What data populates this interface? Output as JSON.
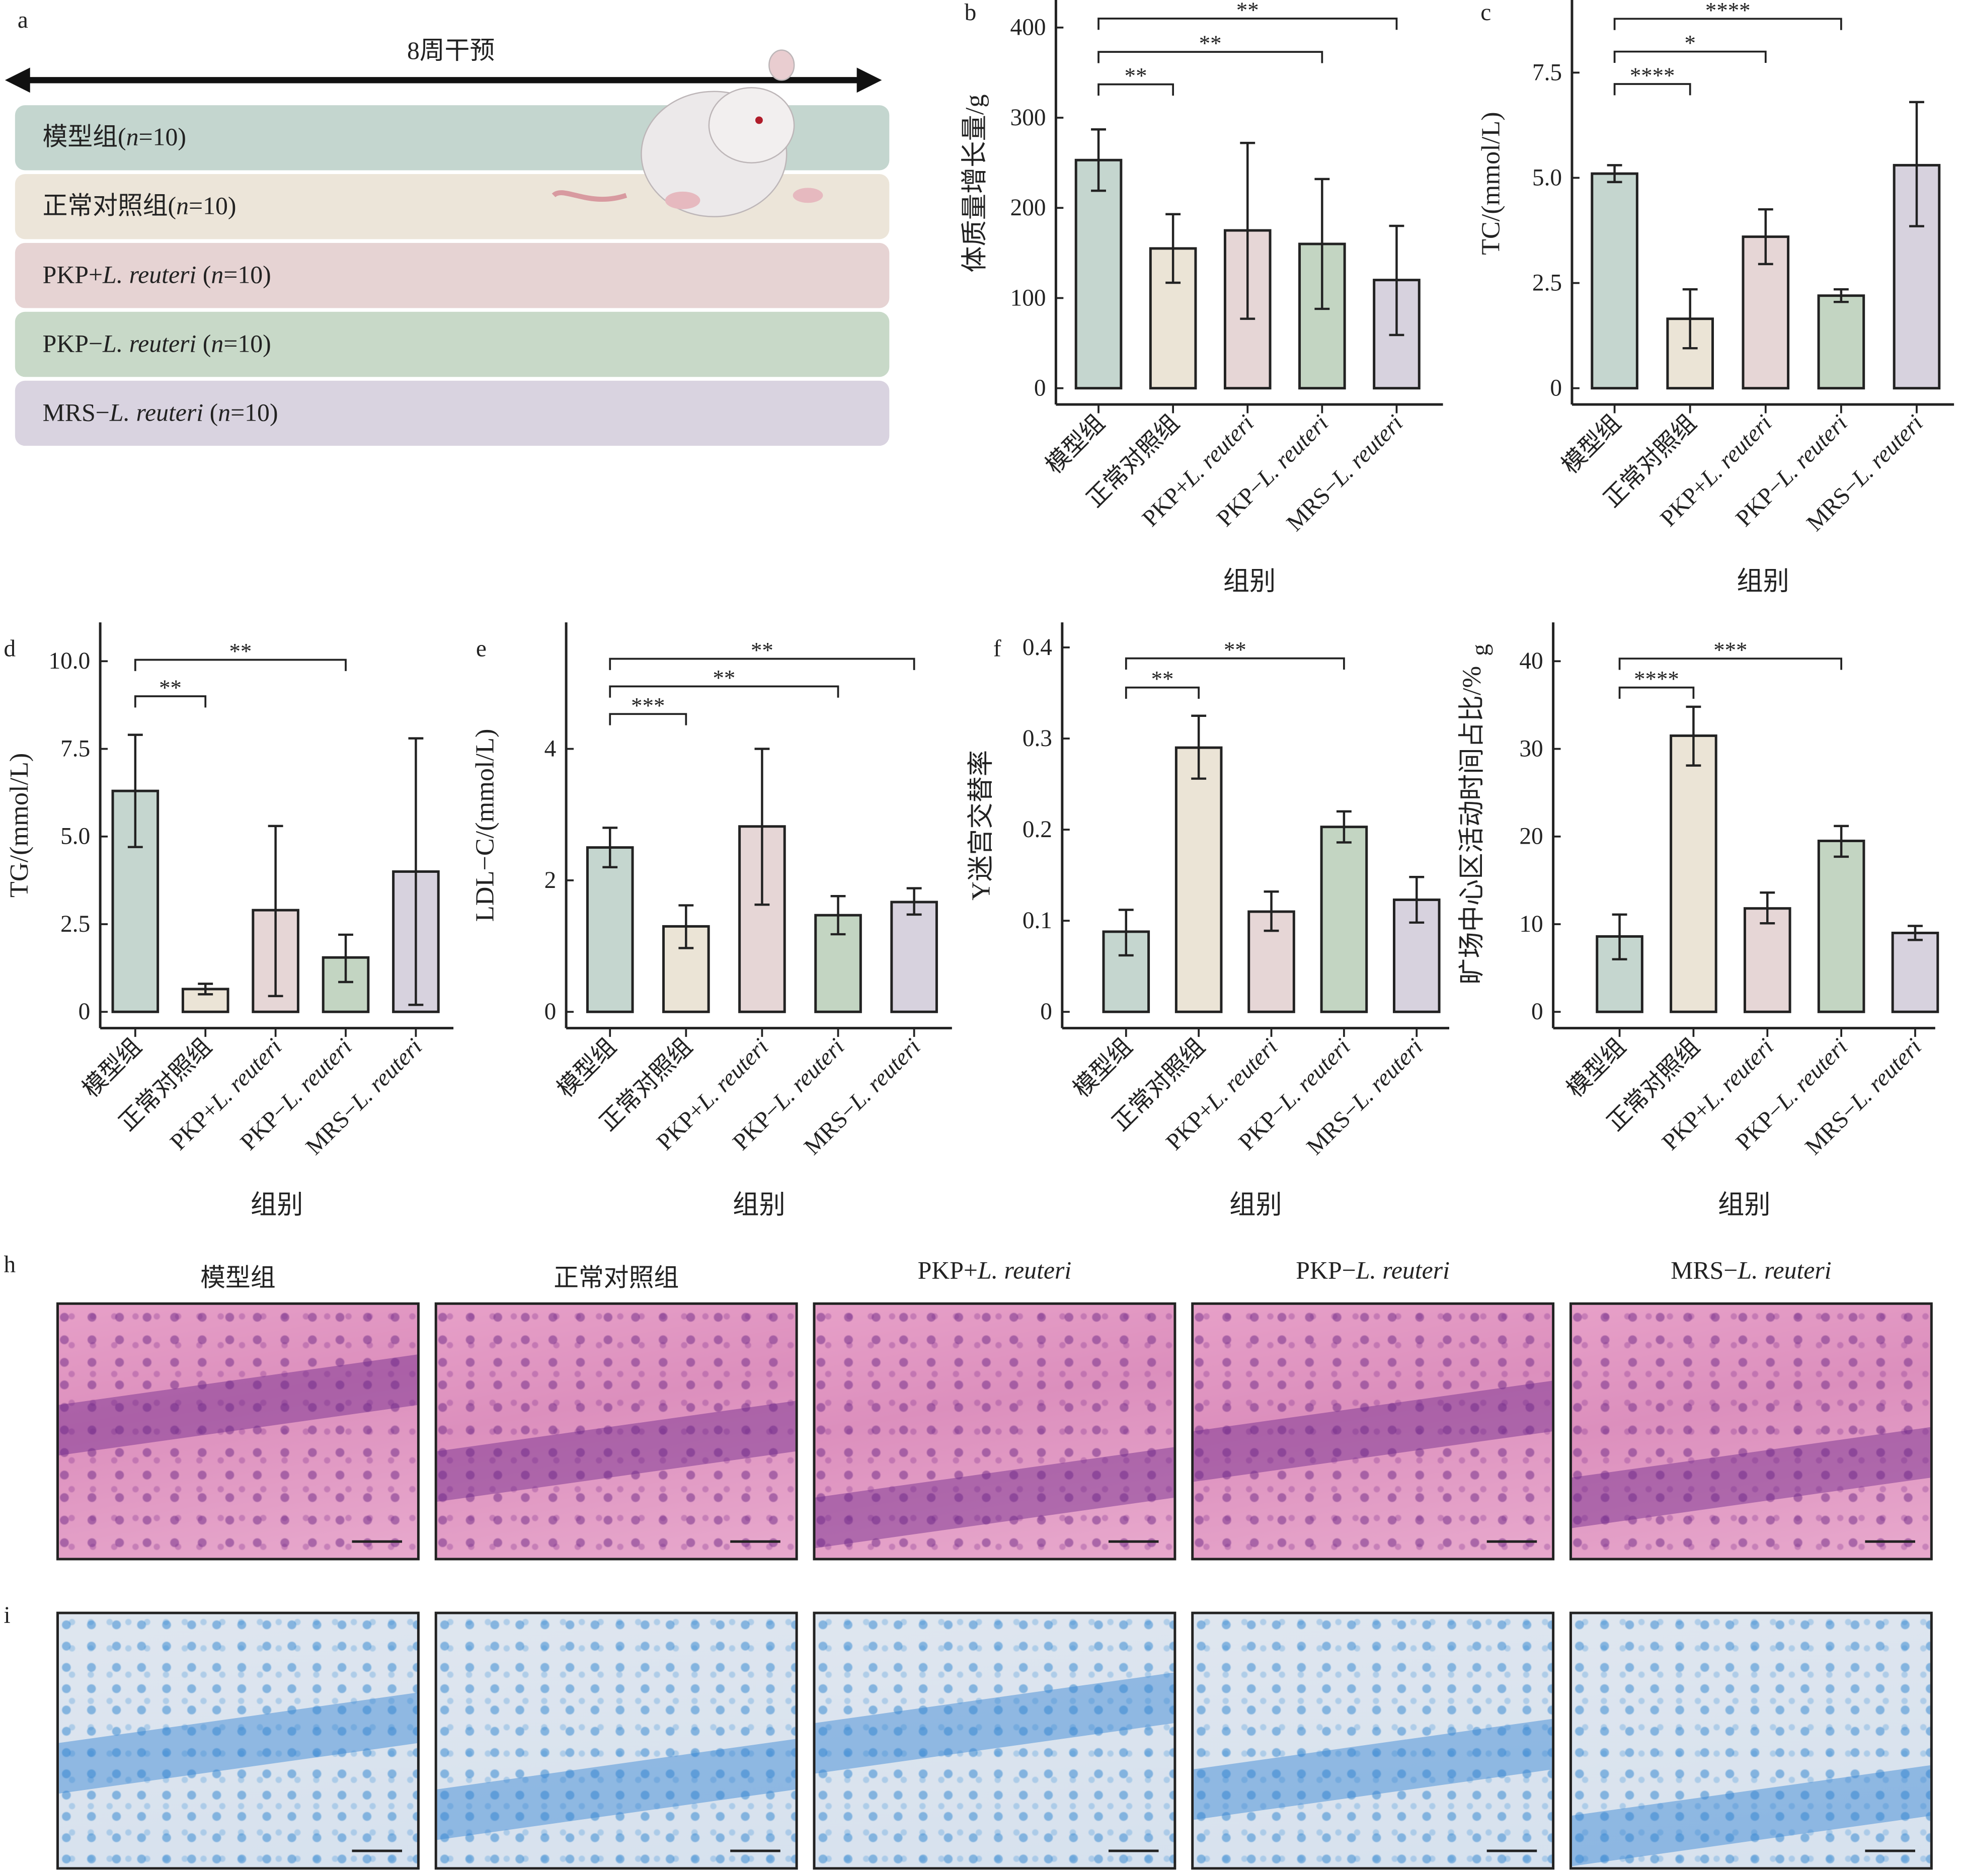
{
  "panel_letters": {
    "a": "a",
    "b": "b",
    "c": "c",
    "d": "d",
    "e": "e",
    "f": "f",
    "g": "g",
    "h": "h",
    "i": "i"
  },
  "design": {
    "duration_label": "8周干预",
    "rows": [
      {
        "segments": [
          {
            "t": "模型组(",
            "i": false
          },
          {
            "t": "n",
            "i": true
          },
          {
            "t": "=10)",
            "i": false
          }
        ],
        "color": "#c4d6cf"
      },
      {
        "segments": [
          {
            "t": "正常对照组(",
            "i": false
          },
          {
            "t": "n",
            "i": true
          },
          {
            "t": "=10)",
            "i": false
          }
        ],
        "color": "#ece5d9"
      },
      {
        "segments": [
          {
            "t": "PKP+",
            "i": false
          },
          {
            "t": "L. reuteri",
            "i": true
          },
          {
            "t": " (",
            "i": false
          },
          {
            "t": "n",
            "i": true
          },
          {
            "t": "=10)",
            "i": false
          }
        ],
        "color": "#e6d3d3"
      },
      {
        "segments": [
          {
            "t": "PKP−",
            "i": false
          },
          {
            "t": "L. reuteri",
            "i": true
          },
          {
            "t": " (",
            "i": false
          },
          {
            "t": "n",
            "i": true
          },
          {
            "t": "=10)",
            "i": false
          }
        ],
        "color": "#c8d9c8"
      },
      {
        "segments": [
          {
            "t": "MRS−",
            "i": false
          },
          {
            "t": "L. reuteri",
            "i": true
          },
          {
            "t": " (",
            "i": false
          },
          {
            "t": "n",
            "i": true
          },
          {
            "t": "=10)",
            "i": false
          }
        ],
        "color": "#d9d3e0"
      }
    ]
  },
  "groups": [
    {
      "pre": "模型组",
      "it": ""
    },
    {
      "pre": "正常对照组",
      "it": ""
    },
    {
      "pre": "PKP+",
      "it": "L. reuteri"
    },
    {
      "pre": "PKP−",
      "it": "L. reuteri"
    },
    {
      "pre": "MRS−",
      "it": "L. reuteri"
    }
  ],
  "bar_colors": [
    "#c5d6cf",
    "#ebe4d6",
    "#e6d6d6",
    "#c3d5c2",
    "#d7d2de"
  ],
  "chart_data": [
    {
      "id": "b",
      "type": "bar",
      "xlabel": "组别",
      "ylabel": "体质量增长量/g",
      "yticks": [
        "0",
        "100",
        "200",
        "300",
        "400"
      ],
      "ytick_values": [
        0,
        100,
        200,
        300,
        400
      ],
      "values": [
        253,
        155,
        175,
        160,
        120
      ],
      "err_low": [
        219,
        117,
        77,
        88,
        59
      ],
      "err_high": [
        287,
        193,
        272,
        232,
        180
      ],
      "significance": [
        {
          "from": 1,
          "to": 2,
          "label": "**",
          "y": 337
        },
        {
          "from": 1,
          "to": 4,
          "label": "**",
          "y": 373
        },
        {
          "from": 1,
          "to": 5,
          "label": "**",
          "y": 410
        }
      ]
    },
    {
      "id": "c",
      "type": "bar",
      "xlabel": "组别",
      "ylabel": "TC/(mmol/L)",
      "yticks": [
        "0",
        "2.5",
        "5.0",
        "7.5"
      ],
      "ytick_values": [
        0,
        2.5,
        5,
        7.5
      ],
      "values": [
        5.1,
        1.65,
        3.6,
        2.2,
        5.3
      ],
      "err_low": [
        4.9,
        0.95,
        2.95,
        2.05,
        3.85
      ],
      "err_high": [
        5.3,
        2.35,
        4.25,
        2.35,
        6.8
      ],
      "significance": [
        {
          "from": 1,
          "to": 2,
          "label": "****",
          "y": 7.23
        },
        {
          "from": 1,
          "to": 3,
          "label": "*",
          "y": 8.0
        },
        {
          "from": 1,
          "to": 4,
          "label": "****",
          "y": 8.78
        }
      ]
    },
    {
      "id": "d",
      "type": "bar",
      "xlabel": "组别",
      "ylabel": "TG/(mmol/L)",
      "yticks": [
        "0",
        "2.5",
        "5.0",
        "7.5",
        "10.0"
      ],
      "ytick_values": [
        0,
        2.5,
        5,
        7.5,
        10
      ],
      "values": [
        6.3,
        0.65,
        2.9,
        1.55,
        4.0
      ],
      "err_low": [
        4.7,
        0.5,
        0.45,
        0.85,
        0.2
      ],
      "err_high": [
        7.9,
        0.8,
        5.3,
        2.2,
        7.8
      ],
      "significance": [
        {
          "from": 1,
          "to": 2,
          "label": "**",
          "y": 9.0
        },
        {
          "from": 1,
          "to": 4,
          "label": "**",
          "y": 10.04
        }
      ]
    },
    {
      "id": "e",
      "type": "bar",
      "xlabel": "组别",
      "ylabel": "LDL−C/(mmol/L)",
      "yticks": [
        "0",
        "2",
        "4"
      ],
      "ytick_values": [
        0,
        2,
        4
      ],
      "values": [
        2.5,
        1.3,
        2.82,
        1.47,
        1.67
      ],
      "err_low": [
        2.2,
        0.97,
        1.63,
        1.18,
        1.48
      ],
      "err_high": [
        2.8,
        1.62,
        4.0,
        1.76,
        1.88
      ],
      "significance": [
        {
          "from": 1,
          "to": 2,
          "label": "***",
          "y": 4.53
        },
        {
          "from": 1,
          "to": 4,
          "label": "**",
          "y": 4.95
        },
        {
          "from": 1,
          "to": 5,
          "label": "**",
          "y": 5.37
        }
      ]
    },
    {
      "id": "f",
      "type": "bar",
      "xlabel": "组别",
      "ylabel": "Y迷宫交替率",
      "yticks": [
        "0",
        "0.1",
        "0.2",
        "0.3",
        "0.4"
      ],
      "ytick_values": [
        0,
        0.1,
        0.2,
        0.3,
        0.4
      ],
      "values": [
        0.088,
        0.29,
        0.11,
        0.203,
        0.123
      ],
      "err_low": [
        0.062,
        0.256,
        0.089,
        0.186,
        0.098
      ],
      "err_high": [
        0.112,
        0.325,
        0.132,
        0.22,
        0.148
      ],
      "significance": [
        {
          "from": 1,
          "to": 2,
          "label": "**",
          "y": 0.356
        },
        {
          "from": 1,
          "to": 4,
          "label": "**",
          "y": 0.388
        }
      ]
    },
    {
      "id": "g",
      "type": "bar",
      "xlabel": "组别",
      "ylabel": "旷场中心区活动时间占比/%",
      "yticks": [
        "0",
        "10",
        "20",
        "30",
        "40"
      ],
      "ytick_values": [
        0,
        10,
        20,
        30,
        40
      ],
      "values": [
        8.6,
        31.5,
        11.8,
        19.5,
        9.0
      ],
      "err_low": [
        6.0,
        28.1,
        10.1,
        17.7,
        8.2
      ],
      "err_high": [
        11.1,
        34.8,
        13.6,
        21.2,
        9.8
      ],
      "significance": [
        {
          "from": 1,
          "to": 2,
          "label": "****",
          "y": 37.0
        },
        {
          "from": 1,
          "to": 4,
          "label": "***",
          "y": 40.3
        }
      ]
    }
  ],
  "histology": {
    "titles": [
      {
        "pre": "模型组",
        "it": ""
      },
      {
        "pre": "正常对照组",
        "it": ""
      },
      {
        "pre": "PKP+",
        "it": "L. reuteri"
      },
      {
        "pre": "PKP−",
        "it": "L. reuteri"
      },
      {
        "pre": "MRS−",
        "it": "L. reuteri"
      }
    ]
  }
}
